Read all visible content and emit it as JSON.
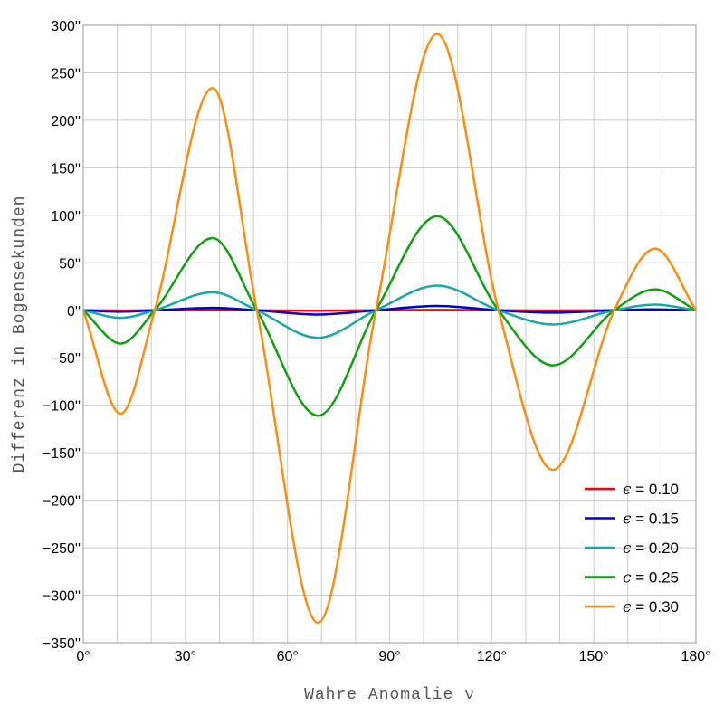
{
  "chart_data": {
    "type": "line",
    "xlabel": "Wahre Anomalie ν",
    "ylabel": "Differenz in Bogensekunden",
    "xlim": [
      0,
      180
    ],
    "ylim": [
      -350,
      300
    ],
    "x_ticks": [
      0,
      30,
      60,
      90,
      120,
      150,
      180
    ],
    "x_tick_labels": [
      "0°",
      "30°",
      "60°",
      "90°",
      "120°",
      "150°",
      "180°"
    ],
    "x_minor_step": 10,
    "y_ticks": [
      -350,
      -300,
      -250,
      -200,
      -150,
      -100,
      -50,
      0,
      50,
      100,
      150,
      200,
      250,
      300
    ],
    "y_tick_labels": [
      "−350''",
      "−300''",
      "−250''",
      "−200''",
      "−150''",
      "−100''",
      "−50''",
      "0''",
      "50''",
      "100''",
      "150''",
      "200''",
      "250''",
      "300''"
    ],
    "grid": true,
    "legend_position": "bottom-right",
    "series": [
      {
        "name": "ε = 0.10",
        "symbol": "ϵ",
        "value_text": " = 0.10",
        "color": "#ff0000",
        "x": [
          0,
          11,
          21,
          37,
          51,
          68,
          86,
          103,
          122,
          138,
          156,
          167,
          180
        ],
        "y": [
          0,
          -0.3,
          0,
          0.3,
          0,
          -0.4,
          0,
          0.4,
          0,
          -0.2,
          0,
          0.1,
          0
        ]
      },
      {
        "name": "ε = 0.15",
        "symbol": "ϵ",
        "value_text": " = 0.15",
        "color": "#0000cc",
        "x": [
          0,
          11,
          21,
          38,
          51,
          69,
          86,
          104,
          122,
          138,
          156,
          167,
          180
        ],
        "y": [
          0,
          -1.5,
          0,
          2.5,
          0,
          -4.5,
          0,
          4.5,
          0,
          -2.5,
          0,
          1,
          0
        ]
      },
      {
        "name": "ε = 0.20",
        "symbol": "ϵ",
        "value_text": " = 0.20",
        "color": "#18a8a8",
        "x": [
          0,
          11,
          21,
          38,
          51,
          69,
          86,
          104,
          122,
          138,
          156,
          168,
          180
        ],
        "y": [
          0,
          -8,
          0,
          19,
          0,
          -29,
          0,
          26,
          0,
          -15,
          0,
          6,
          0
        ]
      },
      {
        "name": "ε = 0.25",
        "symbol": "ϵ",
        "value_text": " = 0.25",
        "color": "#10a010",
        "x": [
          0,
          11,
          21,
          38,
          51,
          69,
          86,
          104,
          122,
          138,
          156,
          168,
          180
        ],
        "y": [
          0,
          -35,
          0,
          76,
          0,
          -111,
          0,
          99,
          0,
          -58,
          0,
          22,
          0
        ]
      },
      {
        "name": "ε = 0.30",
        "symbol": "ϵ",
        "value_text": " = 0.30",
        "color": "#ff8c10",
        "x": [
          0,
          11,
          21,
          38,
          51,
          69,
          86,
          104,
          122,
          138,
          156,
          168,
          180
        ],
        "y": [
          0,
          -109,
          0,
          234,
          0,
          -329,
          0,
          291,
          0,
          -168,
          0,
          65,
          0
        ]
      }
    ]
  }
}
